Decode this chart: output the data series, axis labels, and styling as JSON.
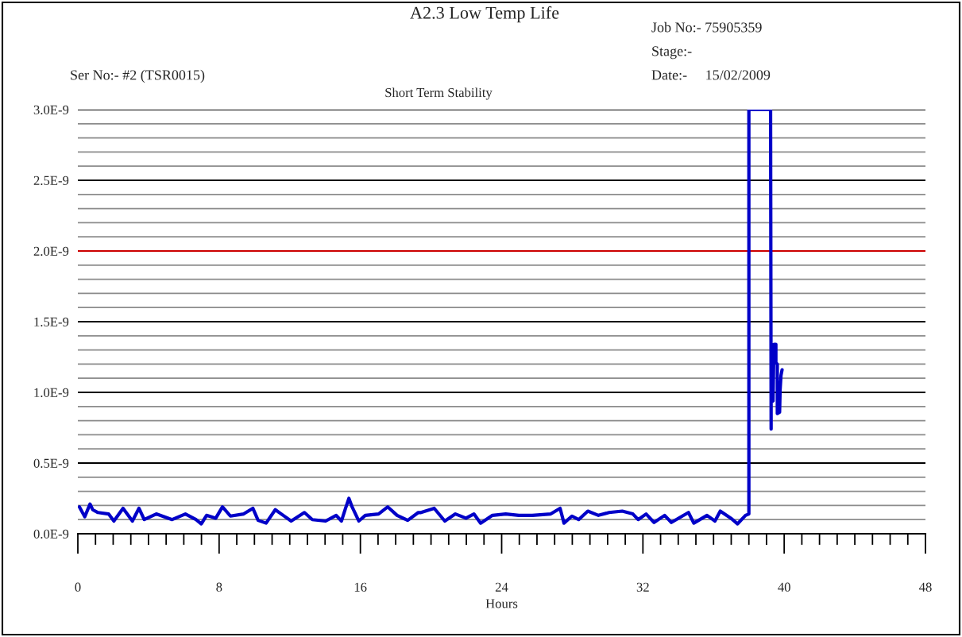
{
  "chart_data": {
    "type": "line",
    "title": "A2.3 Low Temp Life",
    "subtitle": "Short Term Stability",
    "xlabel": "Hours",
    "annotations": [
      "Ser No:- #2 (TSR0015)",
      "Job No:- 75905359",
      "Stage:-",
      "Date:-     15/02/2009"
    ],
    "series": [
      {
        "color": "#0000c8",
        "x": [
          0.09,
          0.39,
          0.69,
          0.84,
          1.14,
          1.74,
          2.04,
          2.56,
          3.09,
          3.46,
          3.76,
          4.44,
          5.34,
          6.09,
          6.69,
          6.99,
          7.29,
          7.81,
          8.19,
          8.64,
          9.39,
          9.91,
          10.21,
          10.66,
          11.18,
          11.63,
          12.08,
          12.83,
          13.28,
          14.03,
          14.63,
          14.93,
          15.16,
          15.35,
          15.53,
          15.91,
          16.28,
          17.03,
          17.55,
          18.08,
          18.68,
          19.28,
          19.43,
          20.18,
          20.78,
          21.38,
          21.98,
          22.43,
          22.81,
          23.48,
          24.23,
          24.98,
          25.73,
          26.78,
          27.31,
          27.53,
          27.98,
          28.36,
          28.88,
          29.48,
          30.08,
          30.83,
          31.43,
          31.73,
          32.18,
          32.63,
          33.23,
          33.61,
          34.58,
          34.88,
          35.63,
          36.08,
          36.38,
          36.98,
          37.36,
          37.81,
          38.0,
          38.0,
          39.23,
          39.26,
          39.26,
          39.37,
          39.42,
          39.53,
          39.53,
          39.61,
          39.61,
          39.74,
          39.77,
          39.82,
          39.88
        ],
        "values": [
          1.9e-10,
          1.2e-10,
          2.1e-10,
          1.7e-10,
          1.5e-10,
          1.4e-10,
          9e-11,
          1.8e-10,
          9e-11,
          1.8e-10,
          1e-10,
          1.4e-10,
          1e-10,
          1.4e-10,
          1e-10,
          7e-11,
          1.3e-10,
          1.1e-10,
          1.9e-10,
          1.25e-10,
          1.4e-10,
          1.8e-10,
          9.5e-11,
          7.5e-11,
          1.7e-10,
          1.3e-10,
          9e-11,
          1.5e-10,
          1e-10,
          9e-11,
          1.3e-10,
          9e-11,
          1.8e-10,
          2.5e-10,
          1.9e-10,
          9e-11,
          1.3e-10,
          1.4e-10,
          1.9e-10,
          1.3e-10,
          9.5e-11,
          1.5e-10,
          1.5e-10,
          1.8e-10,
          9e-11,
          1.4e-10,
          1.1e-10,
          1.4e-10,
          7.5e-11,
          1.3e-10,
          1.4e-10,
          1.3e-10,
          1.3e-10,
          1.4e-10,
          1.8e-10,
          7.5e-11,
          1.25e-10,
          1e-10,
          1.6e-10,
          1.3e-10,
          1.5e-10,
          1.6e-10,
          1.4e-10,
          1e-10,
          1.4e-10,
          8e-11,
          1.3e-10,
          8e-11,
          1.5e-10,
          7.5e-11,
          1.3e-10,
          9e-11,
          1.6e-10,
          1.1e-10,
          7e-11,
          1.3e-10,
          1.4e-10,
          3e-09,
          3e-09,
          7.4e-10,
          9.3e-10,
          9.4e-10,
          1.34e-09,
          1.34e-09,
          1.21e-09,
          1.2e-09,
          8.5e-10,
          8.6e-10,
          1.02e-09,
          1.12e-09,
          1.16e-09
        ]
      }
    ],
    "xlim": [
      0,
      48
    ],
    "xticks": [
      0,
      {
        "value": 1,
        "label": null
      },
      {
        "value": 2,
        "label": null
      },
      {
        "value": 3,
        "label": null
      },
      {
        "value": 4,
        "label": null
      },
      {
        "value": 5,
        "label": null
      },
      {
        "value": 6,
        "label": null
      },
      {
        "value": 7,
        "label": null
      },
      8,
      {
        "value": 9,
        "label": null
      },
      {
        "value": 10,
        "label": null
      },
      {
        "value": 11,
        "label": null
      },
      {
        "value": 12,
        "label": null
      },
      {
        "value": 13,
        "label": null
      },
      {
        "value": 14,
        "label": null
      },
      {
        "value": 15,
        "label": null
      },
      16,
      {
        "value": 17,
        "label": null
      },
      {
        "value": 18,
        "label": null
      },
      {
        "value": 19,
        "label": null
      },
      {
        "value": 20,
        "label": null
      },
      {
        "value": 21,
        "label": null
      },
      {
        "value": 22,
        "label": null
      },
      {
        "value": 23,
        "label": null
      },
      24,
      {
        "value": 25,
        "label": null
      },
      {
        "value": 26,
        "label": null
      },
      {
        "value": 27,
        "label": null
      },
      {
        "value": 28,
        "label": null
      },
      {
        "value": 29,
        "label": null
      },
      {
        "value": 30,
        "label": null
      },
      {
        "value": 31,
        "label": null
      },
      32,
      {
        "value": 33,
        "label": null
      },
      {
        "value": 34,
        "label": null
      },
      {
        "value": 35,
        "label": null
      },
      {
        "value": 36,
        "label": null
      },
      {
        "value": 37,
        "label": null
      },
      {
        "value": 38,
        "label": null
      },
      {
        "value": 39,
        "label": null
      },
      40,
      {
        "value": 41,
        "label": null
      },
      {
        "value": 42,
        "label": null
      },
      {
        "value": 43,
        "label": null
      },
      {
        "value": 44,
        "label": null
      },
      {
        "value": 45,
        "label": null
      },
      {
        "value": 46,
        "label": null
      },
      {
        "value": 47,
        "label": null
      },
      48
    ],
    "ylim": [
      0,
      3e-09
    ],
    "yticks": [
      {
        "value": 0,
        "label": "0.0E-9"
      },
      {
        "value": 1e-10,
        "label": null
      },
      {
        "value": 2e-10,
        "label": null
      },
      {
        "value": 3e-10,
        "label": null
      },
      {
        "value": 4e-10,
        "label": null
      },
      {
        "value": 5e-10,
        "label": "0.5E-9"
      },
      {
        "value": 6e-10,
        "label": null
      },
      {
        "value": 7e-10,
        "label": null
      },
      {
        "value": 8e-10,
        "label": null
      },
      {
        "value": 9e-10,
        "label": null
      },
      {
        "value": 1e-09,
        "label": "1.0E-9"
      },
      {
        "value": 1.1e-09,
        "label": null
      },
      {
        "value": 1.2e-09,
        "label": null
      },
      {
        "value": 1.3e-09,
        "label": null
      },
      {
        "value": 1.4e-09,
        "label": null
      },
      {
        "value": 1.5e-09,
        "label": "1.5E-9"
      },
      {
        "value": 1.6e-09,
        "label": null
      },
      {
        "value": 1.7e-09,
        "label": null
      },
      {
        "value": 1.8e-09,
        "label": null
      },
      {
        "value": 1.9e-09,
        "label": null
      },
      {
        "value": 2e-09,
        "label": "2.0E-9"
      },
      {
        "value": 2.1e-09,
        "label": null
      },
      {
        "value": 2.2e-09,
        "label": null
      },
      {
        "value": 2.3e-09,
        "label": null
      },
      {
        "value": 2.4e-09,
        "label": null
      },
      {
        "value": 2.5e-09,
        "label": "2.5E-9"
      },
      {
        "value": 2.6e-09,
        "label": null
      },
      {
        "value": 2.7e-09,
        "label": null
      },
      {
        "value": 2.8e-09,
        "label": null
      },
      {
        "value": 2.9e-09,
        "label": null
      },
      {
        "value": 3e-09,
        "label": "3.0E-9"
      }
    ],
    "ref_lines": [
      {
        "axis": "y",
        "value": 2e-09,
        "color": "#cc0000"
      }
    ],
    "grid": "y",
    "legend": false,
    "marker": "none",
    "line_style": "solid"
  }
}
